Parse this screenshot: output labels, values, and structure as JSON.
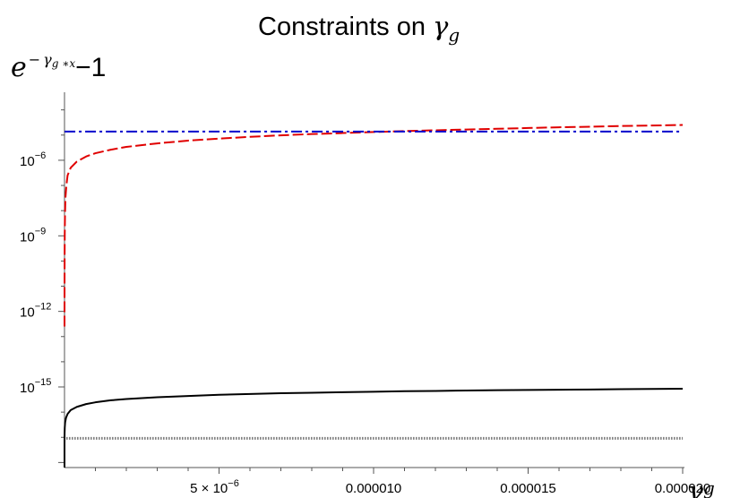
{
  "chart_data": {
    "type": "line",
    "title": {
      "text": "Constraints on ",
      "symbol": "γ",
      "subscript": "g"
    },
    "xlabel": {
      "symbol": "γ",
      "subscript": "g"
    },
    "ylabel": {
      "base": "e",
      "sup_minus": "−",
      "sup_symbol": "γ",
      "sup_sub": "g ∗x",
      "tail": "−1"
    },
    "y_scale": "log",
    "xlim": [
      0,
      2e-05
    ],
    "ylim_log10": [
      -18.2,
      -3.3
    ],
    "x_ticks": [
      {
        "value": 5e-06,
        "mantissa": "5 × 10",
        "exp": "−6"
      },
      {
        "value": 1e-05,
        "label": "0.000010"
      },
      {
        "value": 1.5e-05,
        "label": "0.000015"
      },
      {
        "value": 2e-05,
        "label": "0.000020"
      }
    ],
    "y_ticks": [
      {
        "log10": -6,
        "base": "10",
        "exp": "−6"
      },
      {
        "log10": -9,
        "base": "10",
        "exp": "−9"
      },
      {
        "log10": -12,
        "base": "10",
        "exp": "−12"
      },
      {
        "log10": -15,
        "base": "10",
        "exp": "−15"
      }
    ],
    "series": [
      {
        "style": "solid",
        "color": "#000000",
        "x": [
          0,
          2e-10,
          5e-10,
          1e-09,
          3e-09,
          8e-09,
          2e-08,
          5e-08,
          1e-07,
          2e-07,
          4e-07,
          7e-07,
          1e-06,
          1.5e-06,
          2e-06,
          3e-06,
          4e-06,
          5e-06,
          6e-06,
          7e-06,
          8e-06,
          9e-06,
          1e-05,
          1.1e-05,
          1.2e-05,
          1.3e-05,
          1.4e-05,
          1.5e-05,
          1.6e-05,
          1.7e-05,
          1.8e-05,
          1.9e-05,
          2e-05
        ],
        "log10_y": [
          -18.2,
          -17.6,
          -17.31,
          -17.13,
          -16.85,
          -16.62,
          -16.41,
          -16.22,
          -16.07,
          -15.92,
          -15.79,
          -15.68,
          -15.61,
          -15.53,
          -15.48,
          -15.41,
          -15.36,
          -15.31,
          -15.28,
          -15.25,
          -15.23,
          -15.21,
          -15.19,
          -15.17,
          -15.16,
          -15.14,
          -15.13,
          -15.12,
          -15.11,
          -15.1,
          -15.09,
          -15.08,
          -15.07
        ]
      },
      {
        "style": "dotted",
        "color": "#777777",
        "x": [
          6e-08,
          2e-05
        ],
        "log10_y": [
          -17.04,
          -17.04
        ]
      },
      {
        "style": "dashed",
        "color": "#e00000",
        "x": [
          5e-10,
          1e-09,
          2e-09,
          4e-09,
          8e-09,
          1.5e-08,
          3e-08,
          6e-08,
          1e-07,
          2e-07,
          4e-07,
          7e-07,
          1e-06,
          1.5e-06,
          2e-06,
          3e-06,
          4e-06,
          5e-06,
          6e-06,
          7e-06,
          8e-06,
          9e-06,
          1e-05,
          1.1e-05,
          1.2e-05,
          1.3e-05,
          1.4e-05,
          1.5e-05,
          1.6e-05,
          1.7e-05,
          1.8e-05,
          1.9e-05,
          2e-05
        ],
        "log10_y": [
          -12.6,
          -11.8,
          -10.8,
          -9.8,
          -8.9,
          -8.2,
          -7.5,
          -7,
          -6.6,
          -6.3,
          -6.05,
          -5.85,
          -5.72,
          -5.58,
          -5.47,
          -5.33,
          -5.22,
          -5.14,
          -5.07,
          -5.01,
          -4.96,
          -4.92,
          -4.88,
          -4.84,
          -4.81,
          -4.78,
          -4.75,
          -4.72,
          -4.69,
          -4.67,
          -4.64,
          -4.62,
          -4.6
        ]
      },
      {
        "style": "dashdot",
        "color": "#0000cc",
        "x": [
          2e-09,
          2e-05
        ],
        "log10_y": [
          -4.86,
          -4.86
        ]
      }
    ]
  }
}
